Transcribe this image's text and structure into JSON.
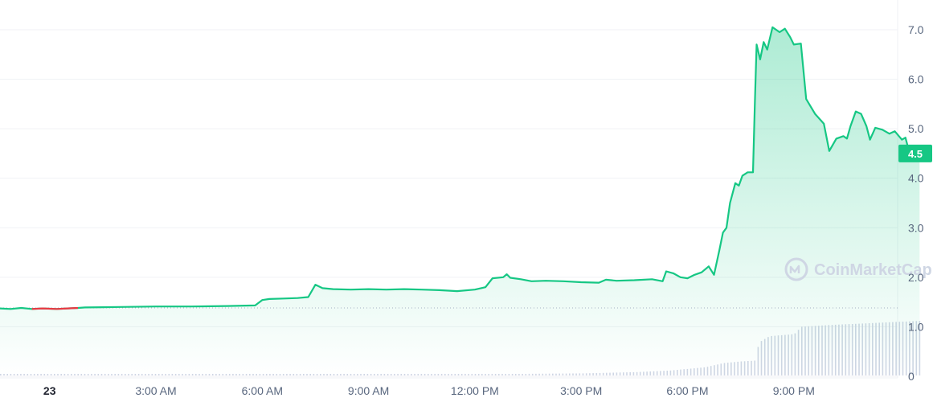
{
  "chart_data": {
    "type": "line",
    "y_axis": {
      "ticks": [
        "7.0",
        "6.0",
        "5.0",
        "4.0",
        "3.0",
        "2.0",
        "1.0",
        "0"
      ],
      "tick_values": [
        7,
        6,
        5,
        4,
        3,
        2,
        1,
        0
      ],
      "range": [
        0,
        7.6
      ],
      "position": "right"
    },
    "x_axis": {
      "ticks": [
        "23",
        "3:00 AM",
        "6:00 AM",
        "9:00 AM",
        "12:00 PM",
        "3:00 PM",
        "6:00 PM",
        "9:00 PM"
      ],
      "tick_hours": [
        0,
        3,
        6,
        9,
        12,
        15,
        18,
        21
      ],
      "range_hours": [
        -1.4,
        23.5
      ]
    },
    "grid": true,
    "reference_line": 1.38,
    "last_price": {
      "label": "4.5",
      "value": 4.5
    },
    "colors": {
      "up": "#16c784",
      "down": "#ea3943",
      "volume": "#cfd6e4",
      "grid": "#f0f2f5",
      "axis_text": "#58667e"
    },
    "watermark": {
      "text": "CoinMarketCap",
      "icon": "coinmarketcap-logo-icon"
    },
    "series": [
      {
        "color": "#16c784",
        "points": [
          [
            -1.4,
            1.37
          ],
          [
            -1.1,
            1.36
          ],
          [
            -0.8,
            1.38
          ],
          [
            -0.5,
            1.36
          ],
          [
            -0.2,
            1.37
          ],
          [
            0.2,
            1.36
          ],
          [
            0.5,
            1.37
          ],
          [
            0.8,
            1.38
          ],
          [
            1.0,
            1.39
          ],
          [
            2.0,
            1.4
          ],
          [
            3.0,
            1.41
          ],
          [
            4.0,
            1.41
          ],
          [
            5.0,
            1.42
          ],
          [
            5.8,
            1.43
          ],
          [
            6.0,
            1.54
          ],
          [
            6.2,
            1.56
          ],
          [
            6.6,
            1.57
          ],
          [
            7.0,
            1.58
          ],
          [
            7.3,
            1.6
          ],
          [
            7.5,
            1.85
          ],
          [
            7.7,
            1.78
          ],
          [
            8.0,
            1.76
          ],
          [
            8.5,
            1.75
          ],
          [
            9.0,
            1.76
          ],
          [
            9.5,
            1.75
          ],
          [
            10.0,
            1.76
          ],
          [
            10.5,
            1.75
          ],
          [
            11.0,
            1.74
          ],
          [
            11.5,
            1.72
          ],
          [
            12.0,
            1.75
          ],
          [
            12.3,
            1.8
          ],
          [
            12.5,
            1.98
          ],
          [
            12.8,
            2.0
          ],
          [
            12.9,
            2.06
          ],
          [
            13.0,
            1.99
          ],
          [
            13.3,
            1.96
          ],
          [
            13.6,
            1.92
          ],
          [
            14.0,
            1.93
          ],
          [
            14.5,
            1.92
          ],
          [
            15.0,
            1.9
          ],
          [
            15.5,
            1.89
          ],
          [
            15.7,
            1.95
          ],
          [
            16.0,
            1.93
          ],
          [
            16.5,
            1.94
          ],
          [
            17.0,
            1.96
          ],
          [
            17.3,
            1.92
          ],
          [
            17.4,
            2.12
          ],
          [
            17.6,
            2.08
          ],
          [
            17.8,
            2.0
          ],
          [
            18.0,
            1.98
          ],
          [
            18.2,
            2.05
          ],
          [
            18.4,
            2.1
          ],
          [
            18.6,
            2.22
          ],
          [
            18.75,
            2.05
          ],
          [
            18.9,
            2.55
          ],
          [
            19.0,
            2.9
          ],
          [
            19.1,
            3.0
          ],
          [
            19.2,
            3.5
          ],
          [
            19.35,
            3.9
          ],
          [
            19.45,
            3.85
          ],
          [
            19.55,
            4.05
          ],
          [
            19.7,
            4.12
          ],
          [
            19.85,
            4.12
          ],
          [
            19.9,
            5.5
          ],
          [
            19.95,
            6.7
          ],
          [
            20.05,
            6.4
          ],
          [
            20.15,
            6.75
          ],
          [
            20.25,
            6.6
          ],
          [
            20.4,
            7.05
          ],
          [
            20.6,
            6.95
          ],
          [
            20.75,
            7.02
          ],
          [
            20.9,
            6.85
          ],
          [
            21.0,
            6.7
          ],
          [
            21.2,
            6.72
          ],
          [
            21.35,
            5.6
          ],
          [
            21.6,
            5.3
          ],
          [
            21.85,
            5.1
          ],
          [
            22.0,
            4.55
          ],
          [
            22.2,
            4.8
          ],
          [
            22.4,
            4.85
          ],
          [
            22.5,
            4.8
          ],
          [
            22.6,
            5.05
          ],
          [
            22.75,
            5.35
          ],
          [
            22.9,
            5.3
          ],
          [
            23.05,
            5.05
          ],
          [
            23.15,
            4.78
          ],
          [
            23.3,
            5.02
          ],
          [
            23.5,
            4.98
          ],
          [
            23.7,
            4.9
          ],
          [
            23.85,
            4.95
          ],
          [
            24.05,
            4.78
          ],
          [
            24.15,
            4.82
          ],
          [
            24.25,
            4.55
          ],
          [
            24.45,
            4.55
          ],
          [
            24.55,
            4.52
          ]
        ]
      }
    ],
    "down_segment": {
      "color": "#ea3943",
      "from_hour": -0.75,
      "to_hour": 0.85
    },
    "volume": {
      "color": "#cfd6e4",
      "points": [
        [
          -1.4,
          0.02
        ],
        [
          6.0,
          0.02
        ],
        [
          12.0,
          0.03
        ],
        [
          15.0,
          0.05
        ],
        [
          16.5,
          0.08
        ],
        [
          17.5,
          0.12
        ],
        [
          18.5,
          0.2
        ],
        [
          19.0,
          0.3
        ],
        [
          19.5,
          0.34
        ],
        [
          19.9,
          0.36
        ],
        [
          20.0,
          0.8
        ],
        [
          20.3,
          0.95
        ],
        [
          21.0,
          1.0
        ],
        [
          21.2,
          1.18
        ],
        [
          22.0,
          1.22
        ],
        [
          23.0,
          1.26
        ],
        [
          24.0,
          1.3
        ],
        [
          24.55,
          1.32
        ]
      ],
      "max": 1.4
    }
  }
}
